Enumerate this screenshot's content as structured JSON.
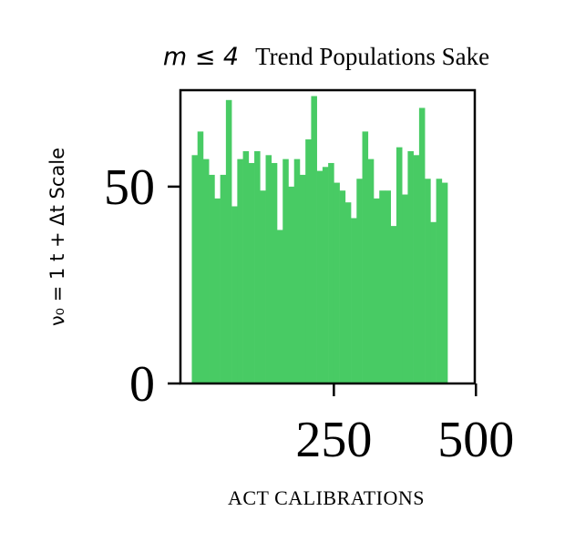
{
  "chart_data": {
    "type": "bar",
    "title_math": "m ≤ 4",
    "title_text": "Trend Populations Sake",
    "xlabel": "ACT CALIBRATIONS",
    "ylabel": "ν₀ = 1  t + Δt  Scale",
    "bar_color": "#48cb64",
    "xlim": [
      -20,
      498
    ],
    "ylim": [
      0,
      74.5
    ],
    "x_ticks": [
      {
        "value": 250,
        "label": "250"
      },
      {
        "value": 500,
        "label": "500"
      }
    ],
    "y_ticks": [
      {
        "value": 0,
        "label": "0"
      },
      {
        "value": 50,
        "label": "50"
      }
    ],
    "bin_start": 0,
    "bin_width": 10,
    "values": [
      58,
      64,
      57,
      53,
      47,
      53,
      72,
      45,
      57,
      59,
      56,
      59,
      49,
      58,
      56,
      39,
      57,
      50,
      57,
      53,
      62,
      73,
      54,
      55,
      56,
      51,
      49,
      46,
      42,
      52,
      64,
      57,
      47,
      49,
      49,
      40,
      60,
      48,
      59,
      58,
      70,
      52,
      41,
      52,
      51
    ]
  }
}
